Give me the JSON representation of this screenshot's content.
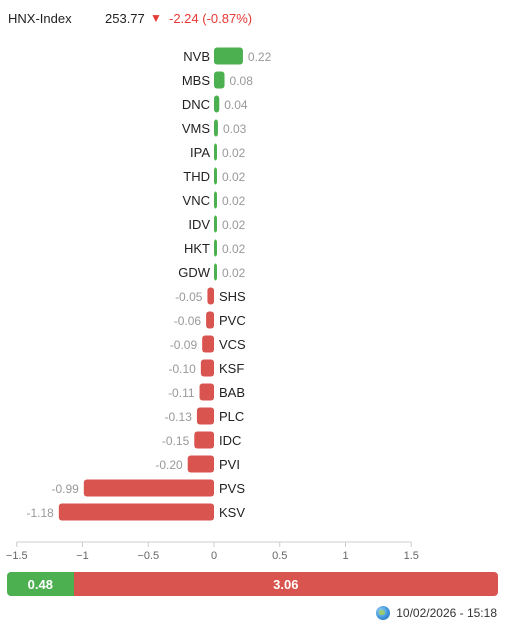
{
  "index": {
    "name": "HNX-Index",
    "value": "253.77",
    "arrow": "▼",
    "change": "-2.24 (-0.87%)"
  },
  "chart_data": {
    "type": "bar",
    "orientation": "horizontal",
    "categories": [
      "NVB",
      "MBS",
      "DNC",
      "VMS",
      "IPA",
      "THD",
      "VNC",
      "IDV",
      "HKT",
      "GDW",
      "SHS",
      "PVC",
      "VCS",
      "KSF",
      "BAB",
      "PLC",
      "IDC",
      "PVI",
      "PVS",
      "KSV"
    ],
    "values": [
      0.22,
      0.08,
      0.04,
      0.03,
      0.02,
      0.02,
      0.02,
      0.02,
      0.02,
      0.02,
      -0.05,
      -0.06,
      -0.09,
      -0.1,
      -0.11,
      -0.13,
      -0.15,
      -0.2,
      -0.99,
      -1.18
    ],
    "labels": [
      "0.22",
      "0.08",
      "0.04",
      "0.03",
      "0.02",
      "0.02",
      "0.02",
      "0.02",
      "0.02",
      "0.02",
      "-0.05",
      "-0.06",
      "-0.09",
      "-0.10",
      "-0.11",
      "-0.13",
      "-0.15",
      "-0.20",
      "-0.99",
      "-1.18"
    ],
    "xlim": [
      -1.5,
      1.5
    ],
    "xticks": [
      -1.5,
      -1,
      -0.5,
      0,
      0.5,
      1,
      1.5
    ],
    "xtick_labels": [
      "−1.5",
      "−1",
      "−0.5",
      "0",
      "0.5",
      "1",
      "1.5"
    ],
    "colors": {
      "positive": "#4caf50",
      "negative": "#d9534f",
      "label": "#999999",
      "text": "#222222"
    },
    "grid": false,
    "legend": "none"
  },
  "summary": {
    "up_value": 0.48,
    "up_label": "0.48",
    "down_value": 3.06,
    "down_label": "3.06"
  },
  "footer": {
    "timestamp": "10/02/2026 - 15:18",
    "icon": "globe-icon"
  }
}
